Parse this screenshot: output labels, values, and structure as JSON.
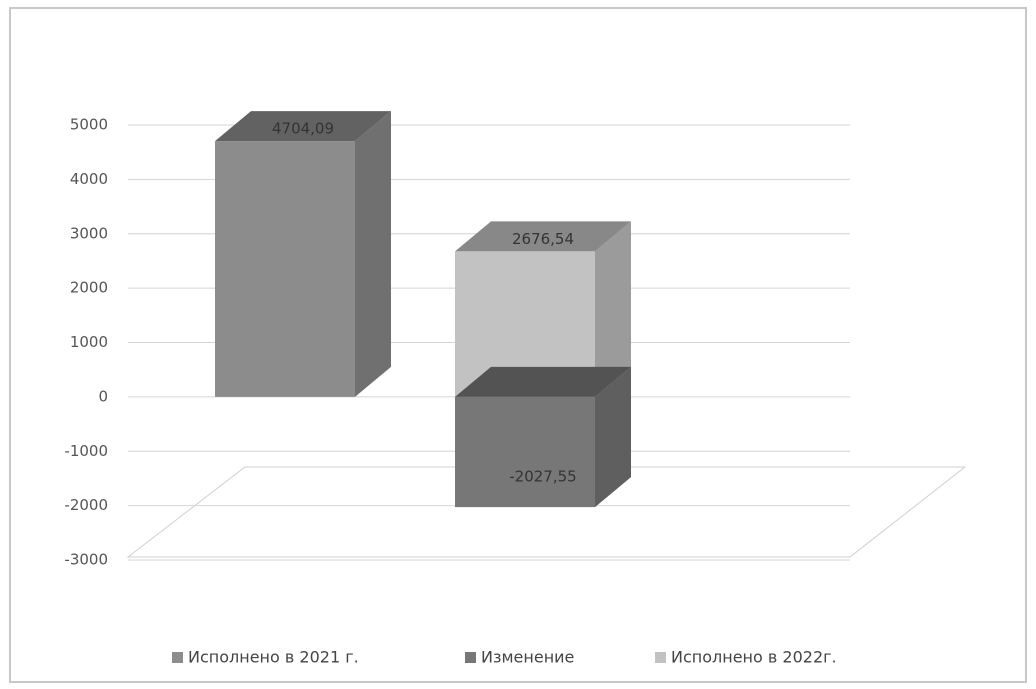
{
  "chart_data": {
    "type": "bar3d",
    "categories": [
      null
    ],
    "series": [
      {
        "name": "Исполнено в 2021 г.",
        "color": "#8c8c8c",
        "values": [
          4704.09
        ],
        "value_labels": [
          "4704,09"
        ]
      },
      {
        "name": "Изменение",
        "color": "#777777",
        "values": [
          -2027.55
        ],
        "value_labels": [
          "-2027,55"
        ]
      },
      {
        "name": "Исполнено в 2022г.",
        "color": "#c2c2c2",
        "values": [
          2676.54
        ],
        "value_labels": [
          "2676,54"
        ]
      }
    ],
    "ylim": [
      -3000,
      5000
    ],
    "yticks": [
      -3000,
      -2000,
      -1000,
      0,
      1000,
      2000,
      3000,
      4000,
      5000
    ],
    "grid": true,
    "legend": "bottom"
  }
}
